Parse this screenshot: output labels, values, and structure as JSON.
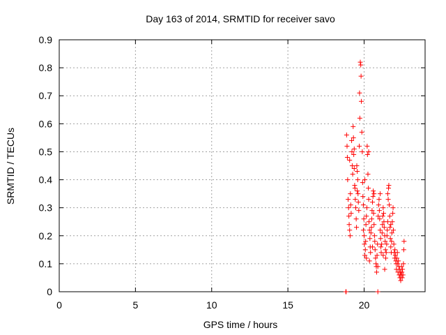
{
  "chart_data": {
    "type": "scatter",
    "title": "Day 163 of 2014, SRMTID for receiver savo",
    "xlabel": "GPS time / hours",
    "ylabel": "SRMTID / TECUs",
    "xlim": [
      0,
      24
    ],
    "ylim": [
      0,
      0.9
    ],
    "xticks": [
      0,
      5,
      10,
      15,
      20
    ],
    "yticks": [
      0,
      0.1,
      0.2,
      0.3,
      0.4,
      0.5,
      0.6,
      0.7,
      0.8,
      0.9
    ],
    "xtick_labels": [
      "0",
      "5",
      "10",
      "15",
      "20"
    ],
    "ytick_labels": [
      "0",
      "0.1",
      "0.2",
      "0.3",
      "0.4",
      "0.5",
      "0.6",
      "0.7",
      "0.8",
      "0.9"
    ],
    "grid": true,
    "marker": "+",
    "color": "#ff0000",
    "series": [
      {
        "name": "SRMTID",
        "points": [
          [
            18.8,
            0.0
          ],
          [
            18.82,
            0.0
          ],
          [
            18.85,
            0.56
          ],
          [
            18.88,
            0.52
          ],
          [
            18.9,
            0.48
          ],
          [
            18.92,
            0.4
          ],
          [
            18.95,
            0.33
          ],
          [
            18.98,
            0.3
          ],
          [
            19.0,
            0.27
          ],
          [
            19.02,
            0.24
          ],
          [
            19.05,
            0.22
          ],
          [
            19.08,
            0.2
          ],
          [
            19.1,
            0.35
          ],
          [
            19.12,
            0.31
          ],
          [
            19.15,
            0.28
          ],
          [
            19.18,
            0.54
          ],
          [
            19.2,
            0.5
          ],
          [
            19.22,
            0.45
          ],
          [
            19.25,
            0.42
          ],
          [
            19.28,
            0.59
          ],
          [
            19.3,
            0.55
          ],
          [
            19.32,
            0.49
          ],
          [
            19.35,
            0.44
          ],
          [
            19.38,
            0.38
          ],
          [
            19.4,
            0.37
          ],
          [
            19.42,
            0.33
          ],
          [
            19.45,
            0.3
          ],
          [
            19.48,
            0.26
          ],
          [
            19.5,
            0.23
          ],
          [
            19.52,
            0.45
          ],
          [
            19.55,
            0.43
          ],
          [
            19.58,
            0.4
          ],
          [
            19.6,
            0.35
          ],
          [
            19.62,
            0.32
          ],
          [
            19.65,
            0.29
          ],
          [
            19.68,
            0.52
          ],
          [
            19.7,
            0.71
          ],
          [
            19.72,
            0.62
          ],
          [
            19.75,
            0.82
          ],
          [
            19.78,
            0.81
          ],
          [
            19.8,
            0.77
          ],
          [
            19.82,
            0.68
          ],
          [
            19.85,
            0.57
          ],
          [
            19.88,
            0.5
          ],
          [
            19.9,
            0.39
          ],
          [
            19.92,
            0.34
          ],
          [
            19.95,
            0.31
          ],
          [
            19.98,
            0.26
          ],
          [
            20.0,
            0.2
          ],
          [
            20.02,
            0.17
          ],
          [
            20.05,
            0.13
          ],
          [
            20.08,
            0.15
          ],
          [
            20.1,
            0.18
          ],
          [
            20.12,
            0.24
          ],
          [
            20.15,
            0.27
          ],
          [
            20.18,
            0.3
          ],
          [
            20.2,
            0.52
          ],
          [
            20.22,
            0.49
          ],
          [
            20.25,
            0.42
          ],
          [
            20.28,
            0.37
          ],
          [
            20.3,
            0.33
          ],
          [
            20.32,
            0.25
          ],
          [
            20.35,
            0.22
          ],
          [
            20.38,
            0.19
          ],
          [
            20.4,
            0.16
          ],
          [
            20.42,
            0.14
          ],
          [
            20.45,
            0.21
          ],
          [
            20.48,
            0.23
          ],
          [
            20.5,
            0.26
          ],
          [
            20.52,
            0.29
          ],
          [
            20.55,
            0.32
          ],
          [
            20.58,
            0.34
          ],
          [
            20.6,
            0.36
          ],
          [
            20.62,
            0.28
          ],
          [
            20.65,
            0.24
          ],
          [
            20.68,
            0.2
          ],
          [
            20.7,
            0.18
          ],
          [
            20.72,
            0.15
          ],
          [
            20.75,
            0.12
          ],
          [
            20.78,
            0.1
          ],
          [
            20.8,
            0.09
          ],
          [
            20.82,
            0.07
          ],
          [
            20.85,
            0.13
          ],
          [
            20.88,
            0.17
          ],
          [
            20.9,
            0.0
          ],
          [
            20.92,
            0.27
          ],
          [
            20.95,
            0.31
          ],
          [
            20.98,
            0.33
          ],
          [
            21.0,
            0.29
          ],
          [
            21.02,
            0.26
          ],
          [
            21.05,
            0.22
          ],
          [
            21.08,
            0.19
          ],
          [
            21.1,
            0.16
          ],
          [
            21.12,
            0.14
          ],
          [
            21.15,
            0.17
          ],
          [
            21.18,
            0.21
          ],
          [
            21.2,
            0.24
          ],
          [
            21.22,
            0.27
          ],
          [
            21.25,
            0.3
          ],
          [
            21.28,
            0.28
          ],
          [
            21.3,
            0.25
          ],
          [
            21.32,
            0.23
          ],
          [
            21.35,
            0.2
          ],
          [
            21.38,
            0.18
          ],
          [
            21.4,
            0.15
          ],
          [
            21.42,
            0.12
          ],
          [
            21.45,
            0.14
          ],
          [
            21.48,
            0.17
          ],
          [
            21.5,
            0.2
          ],
          [
            21.52,
            0.22
          ],
          [
            21.55,
            0.25
          ],
          [
            21.58,
            0.33
          ],
          [
            21.6,
            0.37
          ],
          [
            21.62,
            0.38
          ],
          [
            21.65,
            0.31
          ],
          [
            21.68,
            0.27
          ],
          [
            21.7,
            0.23
          ],
          [
            21.72,
            0.19
          ],
          [
            21.75,
            0.16
          ],
          [
            21.78,
            0.14
          ],
          [
            21.8,
            0.18
          ],
          [
            21.82,
            0.21
          ],
          [
            21.85,
            0.25
          ],
          [
            21.88,
            0.28
          ],
          [
            21.9,
            0.3
          ],
          [
            21.92,
            0.22
          ],
          [
            21.95,
            0.17
          ],
          [
            21.98,
            0.14
          ],
          [
            22.0,
            0.12
          ],
          [
            22.02,
            0.15
          ],
          [
            22.05,
            0.13
          ],
          [
            22.08,
            0.11
          ],
          [
            22.1,
            0.1
          ],
          [
            22.12,
            0.08
          ],
          [
            22.15,
            0.12
          ],
          [
            22.18,
            0.14
          ],
          [
            22.2,
            0.1
          ],
          [
            22.22,
            0.07
          ],
          [
            22.25,
            0.11
          ],
          [
            22.28,
            0.09
          ],
          [
            22.3,
            0.06
          ],
          [
            22.32,
            0.08
          ],
          [
            22.35,
            0.05
          ],
          [
            22.38,
            0.07
          ],
          [
            22.4,
            0.04
          ],
          [
            22.42,
            0.06
          ],
          [
            22.45,
            0.09
          ],
          [
            22.48,
            0.07
          ],
          [
            22.5,
            0.05
          ],
          [
            22.52,
            0.08
          ],
          [
            22.55,
            0.06
          ],
          [
            22.58,
            0.1
          ],
          [
            22.6,
            0.15
          ],
          [
            22.62,
            0.18
          ],
          [
            19.05,
            0.47
          ],
          [
            19.35,
            0.51
          ],
          [
            19.55,
            0.36
          ],
          [
            20.05,
            0.4
          ],
          [
            20.3,
            0.5
          ],
          [
            20.65,
            0.35
          ],
          [
            21.05,
            0.35
          ],
          [
            21.55,
            0.35
          ],
          [
            20.35,
            0.11
          ],
          [
            20.9,
            0.09
          ],
          [
            21.35,
            0.08
          ],
          [
            19.95,
            0.22
          ],
          [
            20.15,
            0.12
          ],
          [
            20.55,
            0.16
          ],
          [
            21.25,
            0.13
          ],
          [
            21.75,
            0.24
          ]
        ]
      }
    ]
  }
}
